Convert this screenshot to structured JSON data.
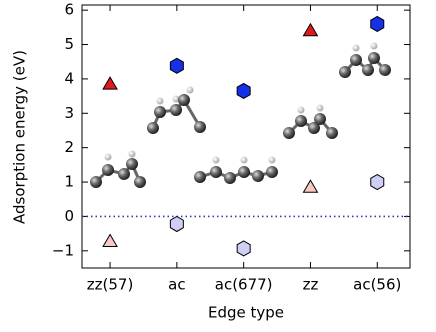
{
  "chart_data": {
    "type": "scatter",
    "xlabel": "Edge type",
    "ylabel": "Adsorption energy (eV)",
    "categories": [
      "zz(57)",
      "ac",
      "ac(677)",
      "zz",
      "ac(56)"
    ],
    "series": [
      {
        "marker": "triangle",
        "color": "#e0191b",
        "values": [
          3.85,
          null,
          null,
          5.4,
          null
        ]
      },
      {
        "marker": "triangle",
        "color": "#f6c9c4",
        "values": [
          -0.73,
          null,
          null,
          0.85,
          null
        ]
      },
      {
        "marker": "hexagon",
        "color": "#1530e6",
        "values": [
          null,
          4.38,
          3.65,
          null,
          5.6
        ]
      },
      {
        "marker": "hexagon",
        "color": "#cdd0f4",
        "values": [
          null,
          -0.22,
          -0.93,
          null,
          1.0
        ]
      }
    ],
    "ylim": [
      -1.5,
      6.15
    ],
    "yticks": [
      {
        "value": -1,
        "label": "−1"
      },
      0,
      1,
      2,
      3,
      4,
      5,
      6
    ],
    "hline": 0,
    "hline_color": "#2a3aa8"
  }
}
